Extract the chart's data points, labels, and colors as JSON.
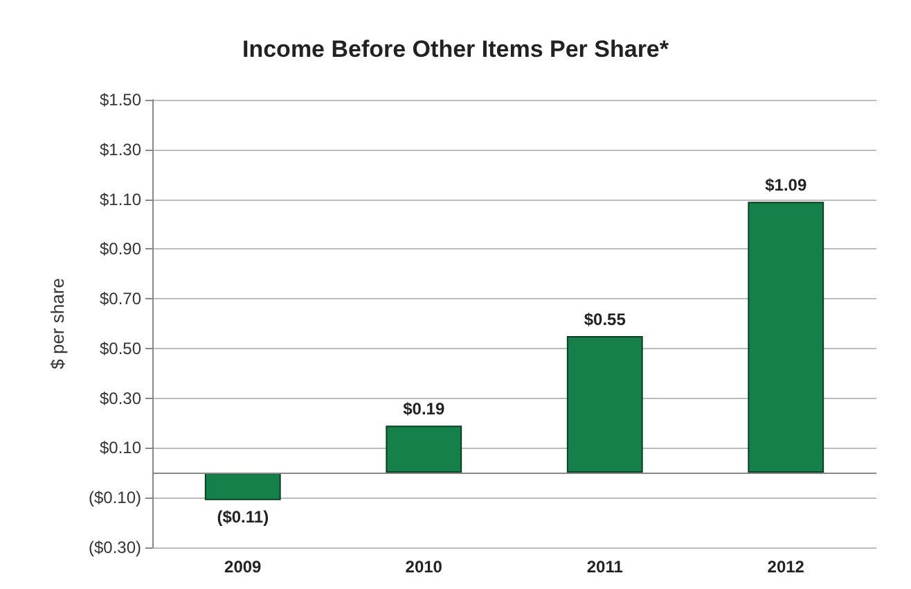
{
  "chart_data": {
    "type": "bar",
    "title": "Income Before Other Items Per Share*",
    "ylabel": "$ per share",
    "categories": [
      "2009",
      "2010",
      "2011",
      "2012"
    ],
    "series": [
      {
        "color": "#16804a",
        "values": [
          -0.11,
          0.19,
          0.55,
          1.09
        ],
        "value_labels": [
          "($0.11)",
          "$0.19",
          "$0.55",
          "$1.09"
        ]
      }
    ],
    "ylim": [
      -0.3,
      1.5
    ],
    "yticks": [
      {
        "value": -0.3,
        "label": "($0.30)"
      },
      {
        "value": -0.1,
        "label": "($0.10)"
      },
      {
        "value": 0.1,
        "label": "$0.10"
      },
      {
        "value": 0.3,
        "label": "$0.30"
      },
      {
        "value": 0.5,
        "label": "$0.50"
      },
      {
        "value": 0.7,
        "label": "$0.70"
      },
      {
        "value": 0.9,
        "label": "$0.90"
      },
      {
        "value": 1.1,
        "label": "$1.10"
      },
      {
        "value": 1.3,
        "label": "$1.30"
      },
      {
        "value": 1.5,
        "label": "$1.50"
      }
    ],
    "grid": "y"
  }
}
